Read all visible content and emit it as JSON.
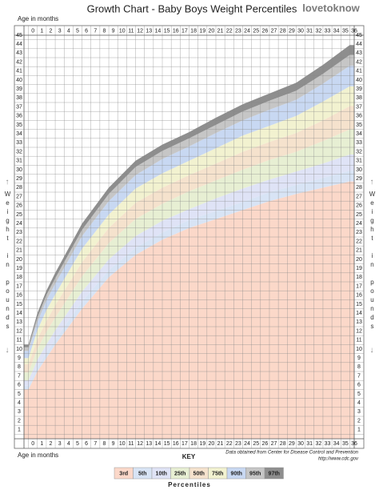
{
  "chart_data": {
    "type": "area",
    "title": "Growth Chart - Baby Boys Weight Percentiles",
    "logo": "lovetoknow",
    "x_label": "Age in months",
    "y_label": "Weight in pounds",
    "key_title": "KEY",
    "legend_title": "Percentiles",
    "source": [
      "Data obtained from Center for Disease Control and Prevention",
      "http://www.cdc.gov"
    ],
    "x": [
      0,
      1,
      2,
      3,
      6,
      9,
      12,
      15,
      18,
      21,
      24,
      27,
      30,
      33,
      36
    ],
    "xlim": [
      -0.5,
      36.5
    ],
    "xticks": [
      0,
      1,
      2,
      3,
      4,
      5,
      6,
      7,
      8,
      9,
      10,
      11,
      12,
      13,
      14,
      15,
      16,
      17,
      18,
      19,
      20,
      21,
      22,
      23,
      24,
      25,
      26,
      27,
      28,
      29,
      30,
      31,
      32,
      33,
      34,
      35,
      36
    ],
    "ylim": [
      0.5,
      45.5
    ],
    "yticks": [
      1,
      2,
      3,
      4,
      5,
      6,
      7,
      8,
      9,
      10,
      11,
      12,
      13,
      14,
      15,
      16,
      17,
      18,
      19,
      20,
      21,
      22,
      23,
      24,
      25,
      26,
      27,
      28,
      29,
      30,
      31,
      32,
      33,
      34,
      35,
      36,
      37,
      38,
      39,
      40,
      41,
      42,
      43,
      44,
      45
    ],
    "grid": true,
    "series": [
      {
        "name": "3rd",
        "color": "#fbd8c9",
        "values": [
          6.0,
          8.0,
          9.5,
          11.0,
          15.0,
          18.5,
          21.0,
          22.7,
          24.0,
          25.0,
          26.0,
          27.0,
          27.8,
          28.5,
          29.2
        ]
      },
      {
        "name": "5th",
        "color": "#d8e4f5",
        "values": [
          6.4,
          8.5,
          10.1,
          11.6,
          15.8,
          19.3,
          21.8,
          23.5,
          24.9,
          25.9,
          26.9,
          28.0,
          28.8,
          29.6,
          30.4
        ]
      },
      {
        "name": "10th",
        "color": "#dfe3f6",
        "values": [
          7.0,
          9.3,
          11.0,
          12.6,
          16.9,
          20.5,
          23.1,
          24.8,
          26.1,
          27.3,
          28.4,
          29.4,
          30.3,
          31.2,
          32.2
        ]
      },
      {
        "name": "25th",
        "color": "#e7efd3",
        "values": [
          7.9,
          10.5,
          12.4,
          14.0,
          18.6,
          22.3,
          25.0,
          26.7,
          28.1,
          29.3,
          30.5,
          31.6,
          32.5,
          33.7,
          35.0
        ]
      },
      {
        "name": "50th",
        "color": "#f5e2cd",
        "values": [
          8.8,
          11.6,
          13.6,
          15.4,
          20.2,
          24.0,
          26.8,
          28.5,
          29.9,
          31.2,
          32.5,
          33.6,
          34.6,
          36.0,
          37.6
        ]
      },
      {
        "name": "75th",
        "color": "#f2f2d0",
        "values": [
          9.5,
          12.6,
          14.8,
          16.6,
          21.7,
          25.5,
          28.4,
          30.1,
          31.5,
          32.9,
          34.3,
          35.4,
          36.5,
          38.1,
          39.8
        ]
      },
      {
        "name": "90th",
        "color": "#c8d8f2",
        "values": [
          10.3,
          13.5,
          15.9,
          17.8,
          23.1,
          27.0,
          29.9,
          31.7,
          33.1,
          34.6,
          36.0,
          37.2,
          38.3,
          40.1,
          42.1
        ]
      },
      {
        "name": "95th",
        "color": "#c6c6c6",
        "values": [
          10.7,
          14.0,
          16.5,
          18.4,
          23.8,
          27.8,
          30.8,
          32.6,
          34.0,
          35.5,
          37.0,
          38.2,
          39.3,
          41.2,
          43.3
        ]
      },
      {
        "name": "97th",
        "color": "#8e8e8e",
        "values": [
          11.0,
          14.5,
          17.0,
          19.0,
          24.5,
          28.5,
          31.5,
          33.3,
          34.7,
          36.3,
          37.8,
          39.0,
          40.2,
          42.2,
          44.4
        ]
      }
    ]
  }
}
